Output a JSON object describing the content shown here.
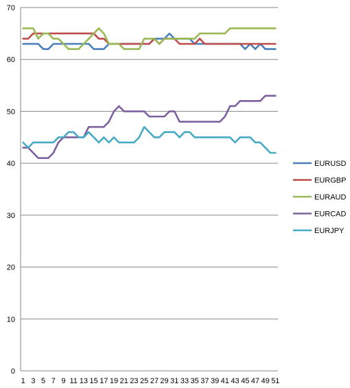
{
  "chart_data": {
    "type": "line",
    "title": "",
    "xlabel": "",
    "ylabel": "",
    "ylim": [
      0,
      70
    ],
    "yticks": [
      0,
      10,
      20,
      30,
      40,
      50,
      60,
      70
    ],
    "grid": true,
    "legend_position": "right",
    "x": [
      1,
      2,
      3,
      4,
      5,
      6,
      7,
      8,
      9,
      10,
      11,
      12,
      13,
      14,
      15,
      16,
      17,
      18,
      19,
      20,
      21,
      22,
      23,
      24,
      25,
      26,
      27,
      28,
      29,
      30,
      31,
      32,
      33,
      34,
      35,
      36,
      37,
      38,
      39,
      40,
      41,
      42,
      43,
      44,
      45,
      46,
      47,
      48,
      49,
      50,
      51
    ],
    "x_tick_labels": [
      "1",
      "3",
      "5",
      "7",
      "9",
      "11",
      "13",
      "15",
      "17",
      "19",
      "21",
      "23",
      "25",
      "27",
      "29",
      "31",
      "33",
      "35",
      "37",
      "39",
      "41",
      "43",
      "45",
      "47",
      "49",
      "51"
    ],
    "series": [
      {
        "name": "EURUSD",
        "color": "#4a7ebb",
        "values": [
          63,
          63,
          63,
          63,
          62,
          62,
          63,
          63,
          63,
          63,
          63,
          63,
          63,
          63,
          62,
          62,
          62,
          63,
          63,
          63,
          63,
          63,
          63,
          63,
          63,
          63,
          64,
          64,
          64,
          65,
          64,
          64,
          64,
          64,
          63,
          63,
          63,
          63,
          63,
          63,
          63,
          63,
          63,
          63,
          62,
          63,
          62,
          63,
          62,
          62,
          62
        ]
      },
      {
        "name": "EURGBP",
        "color": "#be4b48",
        "values": [
          64,
          64,
          65,
          65,
          65,
          65,
          65,
          65,
          65,
          65,
          65,
          65,
          65,
          65,
          65,
          64,
          64,
          63,
          63,
          63,
          63,
          63,
          63,
          63,
          63,
          63,
          64,
          63,
          64,
          64,
          64,
          63,
          63,
          63,
          63,
          64,
          63,
          63,
          63,
          63,
          63,
          63,
          63,
          63,
          63,
          63,
          63,
          63,
          63,
          63,
          63
        ]
      },
      {
        "name": "EURAUD",
        "color": "#98b954",
        "values": [
          66,
          66,
          66,
          64,
          65,
          65,
          64,
          64,
          63,
          62,
          62,
          62,
          63,
          64,
          65,
          66,
          65,
          63,
          63,
          63,
          62,
          62,
          62,
          62,
          64,
          64,
          64,
          63,
          64,
          64,
          64,
          64,
          64,
          64,
          64,
          65,
          65,
          65,
          65,
          65,
          65,
          66,
          66,
          66,
          66,
          66,
          66,
          66,
          66,
          66,
          66
        ]
      },
      {
        "name": "EURCAD",
        "color": "#7d60a0",
        "values": [
          43,
          43,
          42,
          41,
          41,
          41,
          42,
          44,
          45,
          45,
          45,
          45,
          45,
          47,
          47,
          47,
          47,
          48,
          50,
          51,
          50,
          50,
          50,
          50,
          50,
          49,
          49,
          49,
          49,
          50,
          50,
          48,
          48,
          48,
          48,
          48,
          48,
          48,
          48,
          48,
          49,
          51,
          51,
          52,
          52,
          52,
          52,
          52,
          53,
          53,
          53
        ]
      },
      {
        "name": "EURJPY",
        "color": "#46aac5",
        "values": [
          44,
          43,
          44,
          44,
          44,
          44,
          44,
          45,
          45,
          46,
          46,
          45,
          45,
          46,
          45,
          44,
          45,
          44,
          45,
          44,
          44,
          44,
          44,
          45,
          47,
          46,
          45,
          45,
          46,
          46,
          46,
          45,
          46,
          46,
          45,
          45,
          45,
          45,
          45,
          45,
          45,
          45,
          44,
          45,
          45,
          45,
          44,
          44,
          43,
          42,
          42
        ]
      }
    ]
  }
}
